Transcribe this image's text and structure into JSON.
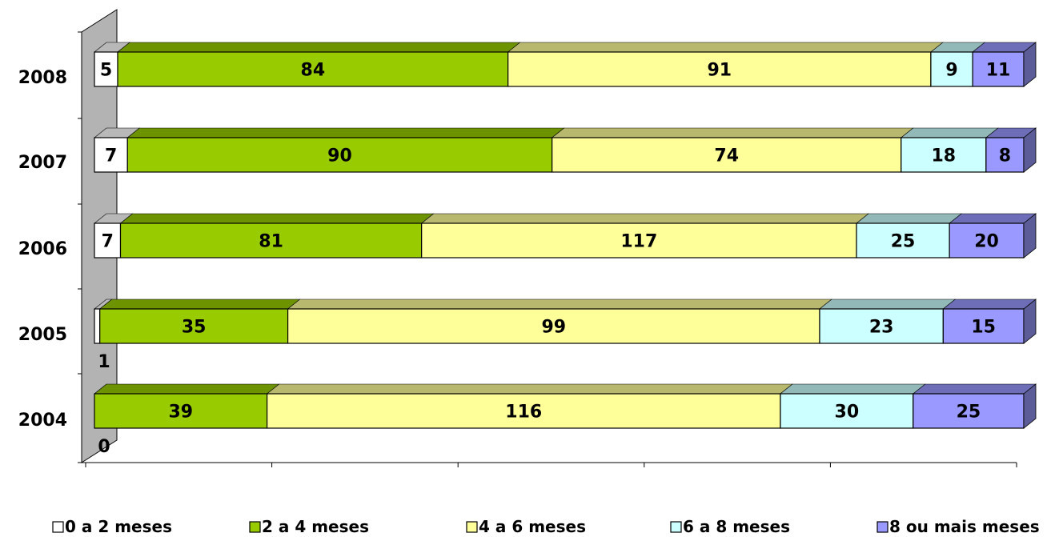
{
  "chart_data": {
    "type": "bar",
    "orientation": "horizontal",
    "stacked": "percent",
    "three_d": true,
    "categories": [
      "2004",
      "2005",
      "2006",
      "2007",
      "2008"
    ],
    "series": [
      {
        "name": "0 a 2 meses",
        "values": [
          0,
          1,
          7,
          7,
          5
        ],
        "color": "#ffffff"
      },
      {
        "name": "2 a 4 meses",
        "values": [
          39,
          35,
          81,
          90,
          84
        ],
        "color": "#99cc00"
      },
      {
        "name": "4 a 6 meses",
        "values": [
          116,
          99,
          117,
          74,
          91
        ],
        "color": "#ffff99"
      },
      {
        "name": "6 a 8 meses",
        "values": [
          30,
          23,
          25,
          18,
          9
        ],
        "color": "#ccffff"
      },
      {
        "name": "8 ou mais meses",
        "values": [
          25,
          15,
          20,
          8,
          11
        ],
        "color": "#9999ff"
      }
    ],
    "legend_position": "bottom",
    "grid": false
  }
}
